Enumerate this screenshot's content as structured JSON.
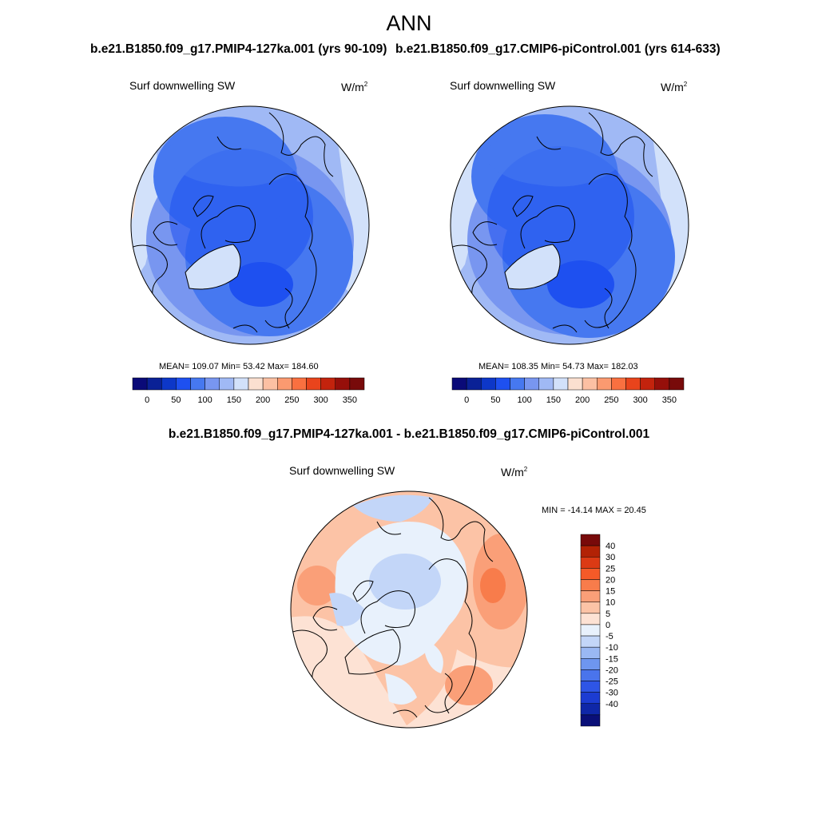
{
  "title": "ANN",
  "panels": {
    "left": {
      "title": "b.e21.B1850.f09_g17.PMIP4-127ka.001 (yrs 90-109)",
      "variable": "Surf downwelling SW",
      "units_base": "W/m",
      "units_exp": "2",
      "stats": "MEAN= 109.07  Min=  53.42  Max= 184.60"
    },
    "right": {
      "title": "b.e21.B1850.f09_g17.CMIP6-piControl.001 (yrs 614-633)",
      "variable": "Surf downwelling SW",
      "units_base": "W/m",
      "units_exp": "2",
      "stats": "MEAN= 108.35  Min=  54.73  Max= 182.03"
    },
    "diff": {
      "title": "b.e21.B1850.f09_g17.PMIP4-127ka.001 - b.e21.B1850.f09_g17.CMIP6-piControl.001",
      "variable": "Surf downwelling SW",
      "units_base": "W/m",
      "units_exp": "2",
      "stats": "MIN = -14.14 MAX =  20.45"
    }
  },
  "colorbar_abs": {
    "colors": [
      "#0a0a78",
      "#0a2196",
      "#0d37c8",
      "#1e50f0",
      "#4678f0",
      "#7896f0",
      "#a0b9f5",
      "#d2e1fa",
      "#fbe0d0",
      "#fcc0a3",
      "#fb9a70",
      "#f97040",
      "#e9441c",
      "#c3230d",
      "#960f0a",
      "#780a0a"
    ],
    "ticks": [
      "0",
      "50",
      "100",
      "150",
      "200",
      "250",
      "300",
      "350"
    ]
  },
  "colorbar_diff": {
    "colors": [
      "#780a0a",
      "#b22205",
      "#dc3a14",
      "#f55a28",
      "#f87c4b",
      "#fa9f78",
      "#fcc3a6",
      "#fde2d4",
      "#e8f1fc",
      "#c3d6f8",
      "#9ab8f3",
      "#6e96ef",
      "#4a74ec",
      "#2e55e6",
      "#1c3cd2",
      "#0f27a8",
      "#0a0f78"
    ],
    "ticks": [
      "40",
      "30",
      "25",
      "20",
      "15",
      "10",
      "5",
      "0",
      "-5",
      "-10",
      "-15",
      "-20",
      "-25",
      "-30",
      "-40"
    ]
  }
}
